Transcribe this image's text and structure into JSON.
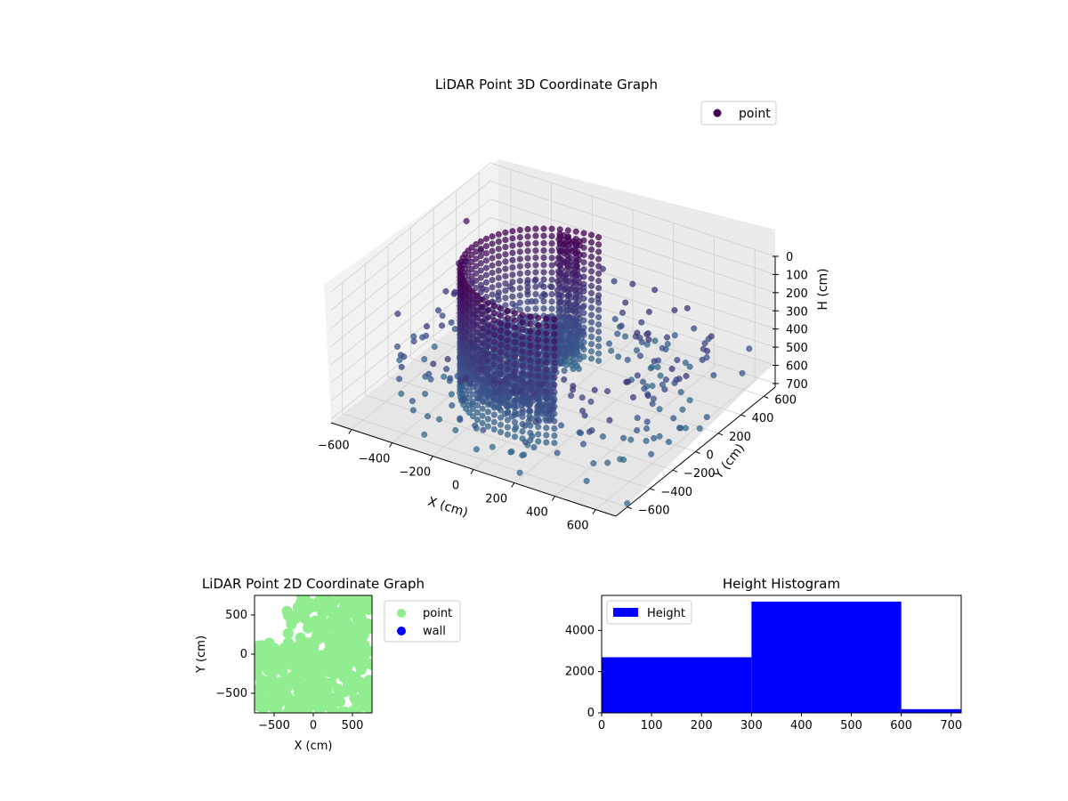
{
  "chart_data": [
    {
      "type": "scatter",
      "projection": "3d",
      "title": "LiDAR Point 3D Coordinate Graph",
      "xlabel": "X (cm)",
      "ylabel": "Y (cm)",
      "zlabel": "H (cm)",
      "x_ticks": [
        "−600",
        "−400",
        "−200",
        "0",
        "200",
        "400",
        "600"
      ],
      "y_ticks": [
        "−600",
        "−400",
        "−200",
        "0",
        "200",
        "400",
        "600"
      ],
      "z_ticks": [
        "0",
        "100",
        "200",
        "300",
        "400",
        "500",
        "600",
        "700"
      ],
      "xlim": [
        -700,
        700
      ],
      "ylim": [
        -700,
        700
      ],
      "zlim": [
        0,
        720
      ],
      "z_inverted": true,
      "grid": true,
      "legend": {
        "position": "upper right",
        "entries": [
          {
            "label": "point",
            "color": "#440154"
          }
        ]
      },
      "colormap": "viridis",
      "color_by": "height",
      "series": [
        {
          "name": "point",
          "description_of_structure": "dense curved wall of points (arc) plus scattered outliers",
          "clusters": [
            {
              "kind": "arc",
              "radius": 400,
              "angle_start": 90,
              "angle_end": 300,
              "h_min": 0,
              "h_max": 700
            },
            {
              "kind": "fan",
              "radius_max": 380,
              "angle_start": 95,
              "angle_end": 300,
              "h": 450
            },
            {
              "kind": "wall",
              "x_range": [
                -150,
                -50
              ],
              "y": 300,
              "h_min": 0,
              "h_max": 700
            }
          ],
          "outliers": [
            {
              "x": -650,
              "y": 400,
              "h": 150
            },
            {
              "x": -550,
              "y": 350,
              "h": 250
            },
            {
              "x": -600,
              "y": 100,
              "h": 500
            },
            {
              "x": -500,
              "y": 0,
              "h": 450
            },
            {
              "x": -450,
              "y": 200,
              "h": 520
            },
            {
              "x": -400,
              "y": -100,
              "h": 600
            },
            {
              "x": -300,
              "y": 250,
              "h": 480
            },
            {
              "x": -200,
              "y": 150,
              "h": 550
            },
            {
              "x": -350,
              "y": 400,
              "h": 380
            },
            {
              "x": 300,
              "y": -500,
              "h": 620
            },
            {
              "x": 500,
              "y": -600,
              "h": 650
            },
            {
              "x": 650,
              "y": -300,
              "h": 600
            },
            {
              "x": 700,
              "y": 100,
              "h": 580
            },
            {
              "x": 650,
              "y": 500,
              "h": 560
            },
            {
              "x": 600,
              "y": 650,
              "h": 520
            },
            {
              "x": 400,
              "y": 650,
              "h": 540
            },
            {
              "x": 700,
              "y": -600,
              "h": 700
            },
            {
              "x": 200,
              "y": -650,
              "h": 690
            }
          ]
        }
      ]
    },
    {
      "type": "scatter",
      "title": "LiDAR Point 2D Coordinate Graph",
      "xlabel": "X (cm)",
      "ylabel": "Y (cm)",
      "x_ticks": [
        "−500",
        "0",
        "500"
      ],
      "y_ticks": [
        "500",
        "0",
        "−500"
      ],
      "xlim": [
        -750,
        750
      ],
      "ylim": [
        -750,
        750
      ],
      "legend": {
        "position": "outside right",
        "entries": [
          {
            "label": "point",
            "color": "#90ee90"
          },
          {
            "label": "wall",
            "color": "#0000ff"
          }
        ]
      },
      "series": [
        {
          "name": "point",
          "color": "#90ee90",
          "coverage": "most of the plot area filled with large light-green markers, white gaps at left and top"
        },
        {
          "name": "wall",
          "color": "#0000ff",
          "points": []
        }
      ]
    },
    {
      "type": "bar",
      "subtype": "histogram",
      "title": "Height Histogram",
      "xlabel": "",
      "ylabel": "",
      "x_ticks": [
        "0",
        "100",
        "200",
        "300",
        "400",
        "500",
        "600",
        "700"
      ],
      "y_ticks": [
        "0",
        "2000",
        "4000"
      ],
      "xlim": [
        0,
        720
      ],
      "ylim": [
        0,
        5700
      ],
      "legend": {
        "position": "upper left",
        "entries": [
          {
            "label": "Height",
            "color": "#0000ff"
          }
        ]
      },
      "color": "#0000ff",
      "bins": [
        {
          "from": 0,
          "to": 300,
          "count": 2700
        },
        {
          "from": 300,
          "to": 600,
          "count": 5400
        },
        {
          "from": 600,
          "to": 720,
          "count": 180
        }
      ]
    }
  ]
}
